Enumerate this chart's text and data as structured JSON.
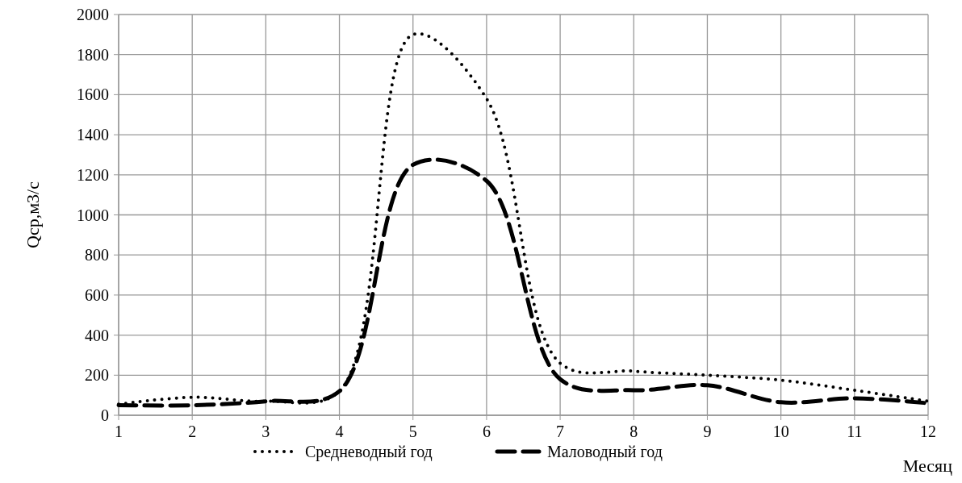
{
  "chart_data": {
    "type": "line",
    "xlabel": "Месяц",
    "ylabel": "Qср,м3/с",
    "x": [
      1,
      2,
      3,
      4,
      5,
      6,
      7,
      8,
      9,
      10,
      11,
      12
    ],
    "series": [
      {
        "name": "Средневодный год",
        "color": "#000000",
        "line_style": "dotted",
        "values": [
          55,
          90,
          70,
          120,
          1900,
          1580,
          260,
          220,
          200,
          175,
          125,
          70
        ]
      },
      {
        "name": "Маловодный год",
        "color": "#000000",
        "line_style": "dashed",
        "values": [
          50,
          50,
          70,
          120,
          1250,
          1170,
          180,
          125,
          150,
          65,
          85,
          60
        ]
      }
    ],
    "xlim": [
      1,
      12
    ],
    "xticks": [
      1,
      2,
      3,
      4,
      5,
      6,
      7,
      8,
      9,
      10,
      11,
      12
    ],
    "ylim": [
      0,
      2000
    ],
    "yticks": [
      0,
      200,
      400,
      600,
      800,
      1000,
      1200,
      1400,
      1600,
      1800,
      2000
    ],
    "grid": true,
    "legend": "bottom",
    "marker": "none"
  }
}
